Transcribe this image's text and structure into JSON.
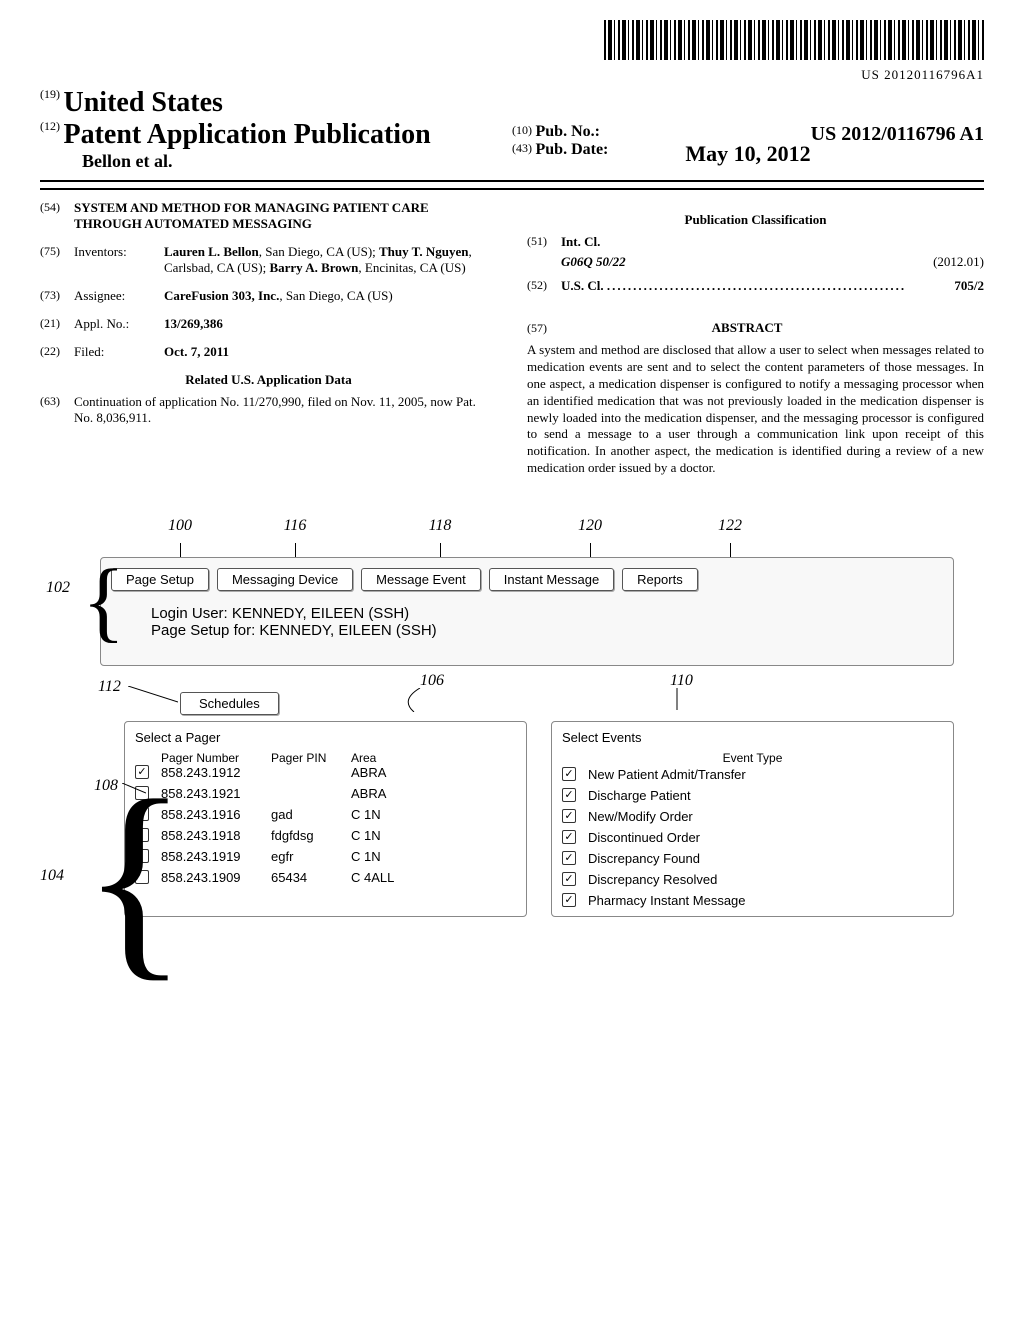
{
  "barcode_text": "US 20120116796A1",
  "header": {
    "ref19": "(19)",
    "country": "United States",
    "ref12": "(12)",
    "pub_title": "Patent Application Publication",
    "authors": "Bellon et al.",
    "ref10": "(10)",
    "pub_no_label": "Pub. No.:",
    "pub_no": "US 2012/0116796 A1",
    "ref43": "(43)",
    "pub_date_label": "Pub. Date:",
    "pub_date": "May 10, 2012"
  },
  "left": {
    "f54_num": "(54)",
    "f54_title": "SYSTEM AND METHOD FOR MANAGING PATIENT CARE THROUGH AUTOMATED MESSAGING",
    "f75_num": "(75)",
    "f75_label": "Inventors:",
    "f75_val": "Lauren L. Bellon, San Diego, CA (US); Thuy T. Nguyen, Carlsbad, CA (US); Barry A. Brown, Encinitas, CA (US)",
    "f73_num": "(73)",
    "f73_label": "Assignee:",
    "f73_val": "CareFusion 303, Inc., San Diego, CA (US)",
    "f21_num": "(21)",
    "f21_label": "Appl. No.:",
    "f21_val": "13/269,386",
    "f22_num": "(22)",
    "f22_label": "Filed:",
    "f22_val": "Oct. 7, 2011",
    "related_hdr": "Related U.S. Application Data",
    "f63_num": "(63)",
    "f63_val": "Continuation of application No. 11/270,990, filed on Nov. 11, 2005, now Pat. No. 8,036,911."
  },
  "right": {
    "classif_hdr": "Publication Classification",
    "f51_num": "(51)",
    "f51_label": "Int. Cl.",
    "f51_code": "G06Q 50/22",
    "f51_date": "(2012.01)",
    "f52_num": "(52)",
    "f52_label": "U.S. Cl.",
    "f52_val": "705/2",
    "f57_num": "(57)",
    "abstract_hdr": "ABSTRACT",
    "abstract": "A system and method are disclosed that allow a user to select when messages related to medication events are sent and to select the content parameters of those messages. In one aspect, a medication dispenser is configured to notify a messaging processor when an identified medication that was not previously loaded in the medication dispenser is newly loaded into the medication dispenser, and the messaging processor is configured to send a message to a user through a communication link upon receipt of this notification. In another aspect, the medication is identified during a review of a new medication order issued by a doctor."
  },
  "figure": {
    "refs": {
      "r100": "100",
      "r102": "102",
      "r104": "104",
      "r106": "106",
      "r108": "108",
      "r110": "110",
      "r112": "112",
      "r116": "116",
      "r118": "118",
      "r120": "120",
      "r122": "122"
    },
    "tabs": {
      "page_setup": "Page Setup",
      "messaging_device": "Messaging Device",
      "message_event": "Message Event",
      "instant_message": "Instant Message",
      "reports": "Reports"
    },
    "login_user": "Login User: KENNEDY, EILEEN (SSH)",
    "page_setup_for": "Page Setup for: KENNEDY, EILEEN (SSH)",
    "schedules": "Schedules",
    "pager_panel": {
      "title": "Select a Pager",
      "col_number": "Pager Number",
      "col_pin": "Pager PIN",
      "col_area": "Area",
      "rows": [
        {
          "checked": true,
          "number": "858.243.1912",
          "pin": "",
          "area": "ABRA"
        },
        {
          "checked": false,
          "number": "858.243.1921",
          "pin": "",
          "area": "ABRA"
        },
        {
          "checked": false,
          "number": "858.243.1916",
          "pin": "gad",
          "area": "C 1N"
        },
        {
          "checked": false,
          "number": "858.243.1918",
          "pin": "fdgfdsg",
          "area": "C 1N"
        },
        {
          "checked": false,
          "number": "858.243.1919",
          "pin": "egfr",
          "area": "C 1N"
        },
        {
          "checked": false,
          "number": "858.243.1909",
          "pin": "65434",
          "area": "C 4ALL"
        }
      ]
    },
    "event_panel": {
      "title": "Select Events",
      "col_type": "Event Type",
      "rows": [
        {
          "checked": true,
          "label": "New Patient Admit/Transfer"
        },
        {
          "checked": true,
          "label": "Discharge Patient"
        },
        {
          "checked": true,
          "label": "New/Modify Order"
        },
        {
          "checked": true,
          "label": "Discontinued Order"
        },
        {
          "checked": true,
          "label": "Discrepancy Found"
        },
        {
          "checked": true,
          "label": "Discrepancy Resolved"
        },
        {
          "checked": true,
          "label": "Pharmacy Instant Message"
        }
      ]
    }
  }
}
